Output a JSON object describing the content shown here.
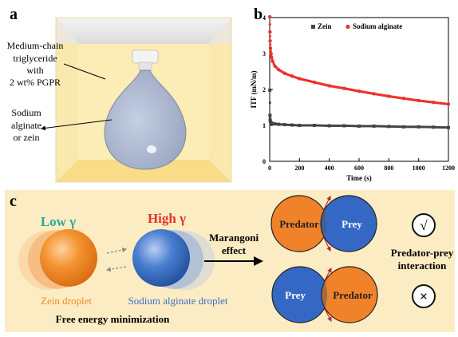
{
  "panel_a": {
    "letter": "a",
    "oil_label": [
      "Medium-chain",
      "triglyceride",
      "with",
      "2 wt% PGPR"
    ],
    "droplet_label": [
      "Sodium",
      "alginate",
      "or zein"
    ]
  },
  "panel_b": {
    "letter": "b"
  },
  "chart_data": {
    "type": "scatter",
    "title": "",
    "xlabel": "Time (s)",
    "ylabel": "ITF (mN/m)",
    "xlim": [
      0,
      1200
    ],
    "ylim": [
      0,
      4
    ],
    "x_ticks": [
      0,
      200,
      400,
      600,
      800,
      1000,
      1200
    ],
    "y_ticks": [
      0,
      1,
      2,
      3,
      4
    ],
    "grid": false,
    "legend_position": "top",
    "series": [
      {
        "name": "Zein",
        "color": "#444444",
        "marker": "square",
        "x": [
          1,
          2,
          3,
          5,
          8,
          12,
          20,
          35,
          60,
          100,
          150,
          200,
          300,
          400,
          500,
          600,
          700,
          800,
          900,
          1000,
          1100,
          1200
        ],
        "y": [
          1.98,
          1.28,
          1.15,
          1.1,
          1.08,
          1.06,
          1.05,
          1.04,
          1.03,
          1.02,
          1.01,
          1.0,
          1.0,
          0.99,
          0.99,
          0.98,
          0.98,
          0.97,
          0.96,
          0.96,
          0.95,
          0.94
        ]
      },
      {
        "name": "Sodium alginate",
        "color": "#e8342c",
        "marker": "circle",
        "x": [
          1,
          2,
          3,
          5,
          8,
          12,
          20,
          35,
          60,
          100,
          150,
          200,
          300,
          400,
          500,
          600,
          700,
          800,
          900,
          1000,
          1100,
          1200
        ],
        "y": [
          4.02,
          3.6,
          3.35,
          3.15,
          3.0,
          2.9,
          2.78,
          2.65,
          2.55,
          2.45,
          2.37,
          2.3,
          2.2,
          2.1,
          2.03,
          1.95,
          1.88,
          1.81,
          1.75,
          1.69,
          1.64,
          1.59
        ]
      }
    ]
  },
  "panel_c": {
    "letter": "c",
    "low_gamma": "Low γ",
    "high_gamma": "High γ",
    "zein_label": "Zein droplet",
    "alginate_label": "Sodium alginate droplet",
    "free_energy": "Free energy minimization",
    "marangoni": [
      "Marangoni",
      "effect"
    ],
    "predator": "Predator",
    "prey": "Prey",
    "interaction": [
      "Predator-prey",
      "interaction"
    ],
    "check_symbol": "√",
    "cross_symbol": "×",
    "colors": {
      "zein": "#f18a2b",
      "alginate": "#3e6fc2",
      "predator": "#f0822a",
      "prey": "#3567c4",
      "low_gamma": "#2aa79c",
      "high_gamma": "#e53328",
      "panel_bg": "#fcecc3"
    }
  }
}
